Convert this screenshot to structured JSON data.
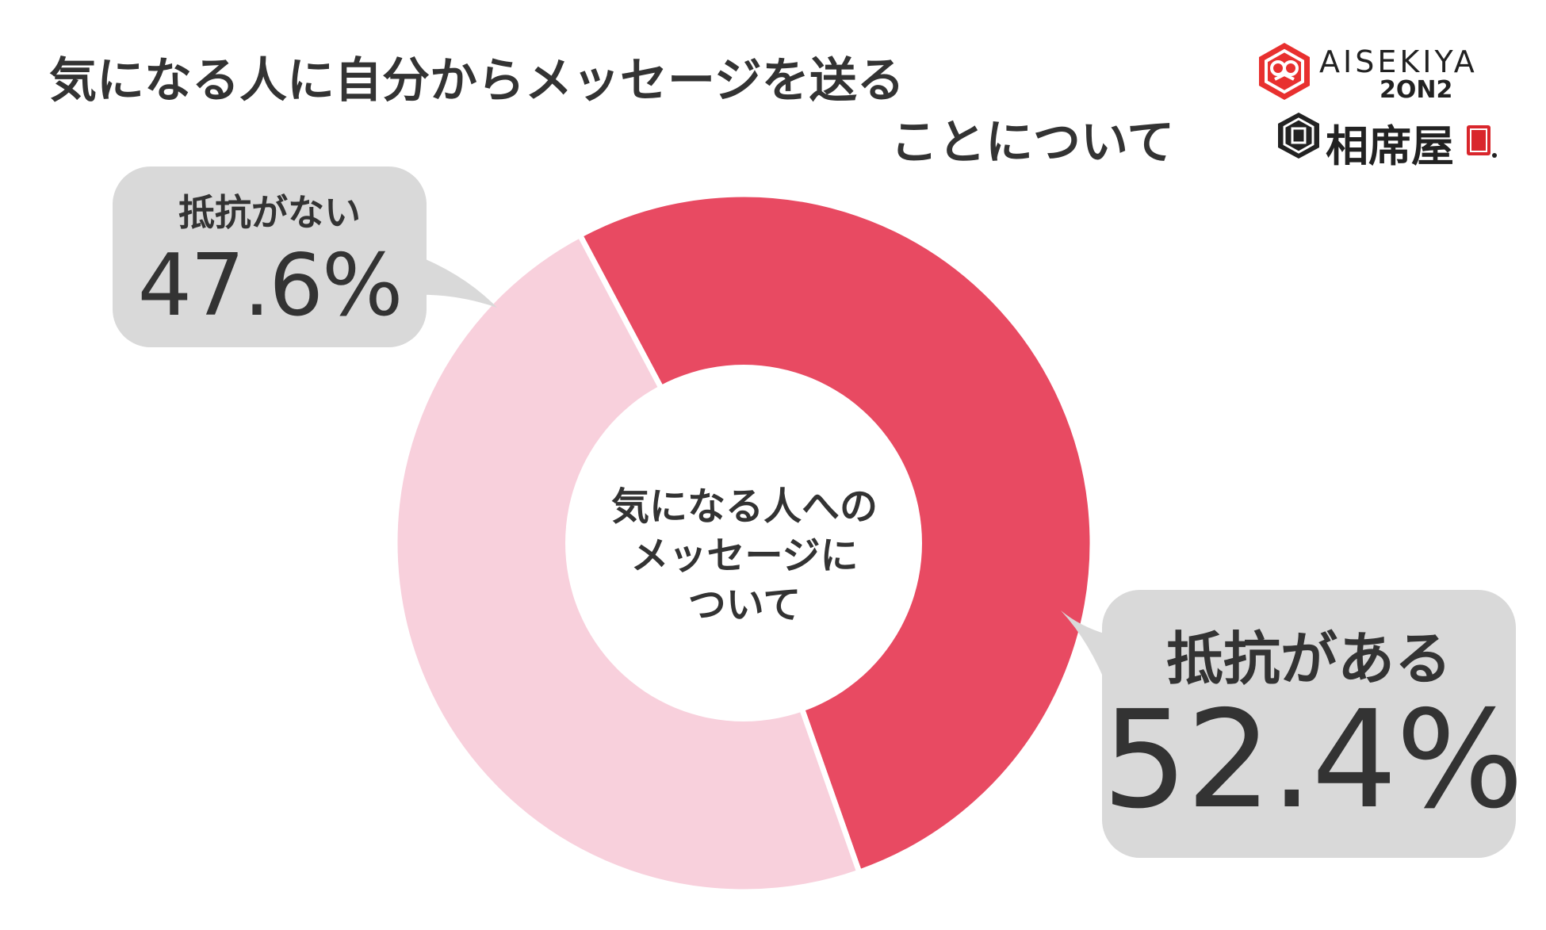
{
  "title": {
    "line1": "気になる人に自分からメッセージを送る",
    "line2": "ことについて"
  },
  "logos": {
    "brand_en": "AISEKIYA",
    "brand_sub": "2ON2",
    "brand_jp": "相席屋"
  },
  "colors": {
    "accent": "#e84a62",
    "light": "#f8d0dc",
    "bubble": "#d9d9d9",
    "text": "#333333"
  },
  "chart_data": {
    "type": "pie",
    "donut": true,
    "center_label": [
      "気になる人への",
      "メッセージに",
      "ついて"
    ],
    "slices": [
      {
        "label": "抵抗がある",
        "value": 52.4,
        "value_text": "52.4%",
        "color": "#e84a62"
      },
      {
        "label": "抵抗がない",
        "value": 47.6,
        "value_text": "47.6%",
        "color": "#f8d0dc"
      }
    ]
  }
}
